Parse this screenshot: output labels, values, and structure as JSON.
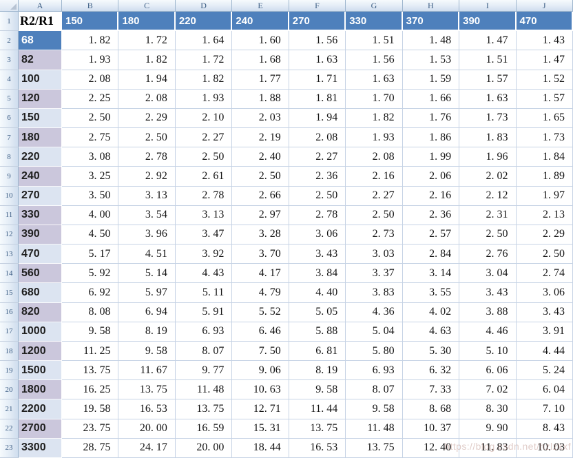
{
  "sheet": {
    "column_letters": [
      "A",
      "B",
      "C",
      "D",
      "E",
      "F",
      "G",
      "H",
      "I",
      "J"
    ],
    "row_numbers": [
      "1",
      "2",
      "3",
      "4",
      "5",
      "6",
      "7",
      "8",
      "9",
      "10",
      "11",
      "12",
      "13",
      "14",
      "15",
      "16",
      "17",
      "18",
      "19",
      "20",
      "21",
      "22",
      "23"
    ],
    "header_row": {
      "label": "R2/R1",
      "values": [
        "150",
        "180",
        "220",
        "240",
        "270",
        "330",
        "370",
        "390",
        "470"
      ]
    },
    "rows": [
      {
        "label": "68",
        "shade": "accent",
        "values": [
          "1. 82",
          "1. 72",
          "1. 64",
          "1. 60",
          "1. 56",
          "1. 51",
          "1. 48",
          "1. 47",
          "1. 43"
        ]
      },
      {
        "label": "82",
        "shade": "dark",
        "values": [
          "1. 93",
          "1. 82",
          "1. 72",
          "1. 68",
          "1. 63",
          "1. 56",
          "1. 53",
          "1. 51",
          "1. 47"
        ]
      },
      {
        "label": "100",
        "shade": "light",
        "values": [
          "2. 08",
          "1. 94",
          "1. 82",
          "1. 77",
          "1. 71",
          "1. 63",
          "1. 59",
          "1. 57",
          "1. 52"
        ]
      },
      {
        "label": "120",
        "shade": "dark",
        "values": [
          "2. 25",
          "2. 08",
          "1. 93",
          "1. 88",
          "1. 81",
          "1. 70",
          "1. 66",
          "1. 63",
          "1. 57"
        ]
      },
      {
        "label": "150",
        "shade": "light",
        "values": [
          "2. 50",
          "2. 29",
          "2. 10",
          "2. 03",
          "1. 94",
          "1. 82",
          "1. 76",
          "1. 73",
          "1. 65"
        ]
      },
      {
        "label": "180",
        "shade": "dark",
        "values": [
          "2. 75",
          "2. 50",
          "2. 27",
          "2. 19",
          "2. 08",
          "1. 93",
          "1. 86",
          "1. 83",
          "1. 73"
        ]
      },
      {
        "label": "220",
        "shade": "light",
        "values": [
          "3. 08",
          "2. 78",
          "2. 50",
          "2. 40",
          "2. 27",
          "2. 08",
          "1. 99",
          "1. 96",
          "1. 84"
        ]
      },
      {
        "label": "240",
        "shade": "dark",
        "values": [
          "3. 25",
          "2. 92",
          "2. 61",
          "2. 50",
          "2. 36",
          "2. 16",
          "2. 06",
          "2. 02",
          "1. 89"
        ]
      },
      {
        "label": "270",
        "shade": "light",
        "values": [
          "3. 50",
          "3. 13",
          "2. 78",
          "2. 66",
          "2. 50",
          "2. 27",
          "2. 16",
          "2. 12",
          "1. 97"
        ]
      },
      {
        "label": "330",
        "shade": "dark",
        "values": [
          "4. 00",
          "3. 54",
          "3. 13",
          "2. 97",
          "2. 78",
          "2. 50",
          "2. 36",
          "2. 31",
          "2. 13"
        ]
      },
      {
        "label": "390",
        "shade": "dark",
        "values": [
          "4. 50",
          "3. 96",
          "3. 47",
          "3. 28",
          "3. 06",
          "2. 73",
          "2. 57",
          "2. 50",
          "2. 29"
        ]
      },
      {
        "label": "470",
        "shade": "light",
        "values": [
          "5. 17",
          "4. 51",
          "3. 92",
          "3. 70",
          "3. 43",
          "3. 03",
          "2. 84",
          "2. 76",
          "2. 50"
        ]
      },
      {
        "label": "560",
        "shade": "dark",
        "values": [
          "5. 92",
          "5. 14",
          "4. 43",
          "4. 17",
          "3. 84",
          "3. 37",
          "3. 14",
          "3. 04",
          "2. 74"
        ]
      },
      {
        "label": "680",
        "shade": "light",
        "values": [
          "6. 92",
          "5. 97",
          "5. 11",
          "4. 79",
          "4. 40",
          "3. 83",
          "3. 55",
          "3. 43",
          "3. 06"
        ]
      },
      {
        "label": "820",
        "shade": "dark",
        "values": [
          "8. 08",
          "6. 94",
          "5. 91",
          "5. 52",
          "5. 05",
          "4. 36",
          "4. 02",
          "3. 88",
          "3. 43"
        ]
      },
      {
        "label": "1000",
        "shade": "light",
        "values": [
          "9. 58",
          "8. 19",
          "6. 93",
          "6. 46",
          "5. 88",
          "5. 04",
          "4. 63",
          "4. 46",
          "3. 91"
        ]
      },
      {
        "label": "1200",
        "shade": "dark",
        "values": [
          "11. 25",
          "9. 58",
          "8. 07",
          "7. 50",
          "6. 81",
          "5. 80",
          "5. 30",
          "5. 10",
          "4. 44"
        ]
      },
      {
        "label": "1500",
        "shade": "light",
        "values": [
          "13. 75",
          "11. 67",
          "9. 77",
          "9. 06",
          "8. 19",
          "6. 93",
          "6. 32",
          "6. 06",
          "5. 24"
        ]
      },
      {
        "label": "1800",
        "shade": "dark",
        "values": [
          "16. 25",
          "13. 75",
          "11. 48",
          "10. 63",
          "9. 58",
          "8. 07",
          "7. 33",
          "7. 02",
          "6. 04"
        ]
      },
      {
        "label": "2200",
        "shade": "light",
        "values": [
          "19. 58",
          "16. 53",
          "13. 75",
          "12. 71",
          "11. 44",
          "9. 58",
          "8. 68",
          "8. 30",
          "7. 10"
        ]
      },
      {
        "label": "2700",
        "shade": "dark",
        "values": [
          "23. 75",
          "20. 00",
          "16. 59",
          "15. 31",
          "13. 75",
          "11. 48",
          "10. 37",
          "9. 90",
          "8. 43"
        ]
      },
      {
        "label": "3300",
        "shade": "light",
        "values": [
          "28. 75",
          "24. 17",
          "20. 00",
          "18. 44",
          "16. 53",
          "13. 75",
          "12. 40",
          "11. 83",
          "10. 03"
        ]
      }
    ],
    "watermark": "https://blog.csdn.net/hzlzkxf",
    "colors": {
      "accent": "#4e80bc",
      "band_dark": "#cbc7dc",
      "band_light": "#dce4f1",
      "gridline": "#c6d3e5",
      "head_text": "#3d5e84"
    }
  }
}
